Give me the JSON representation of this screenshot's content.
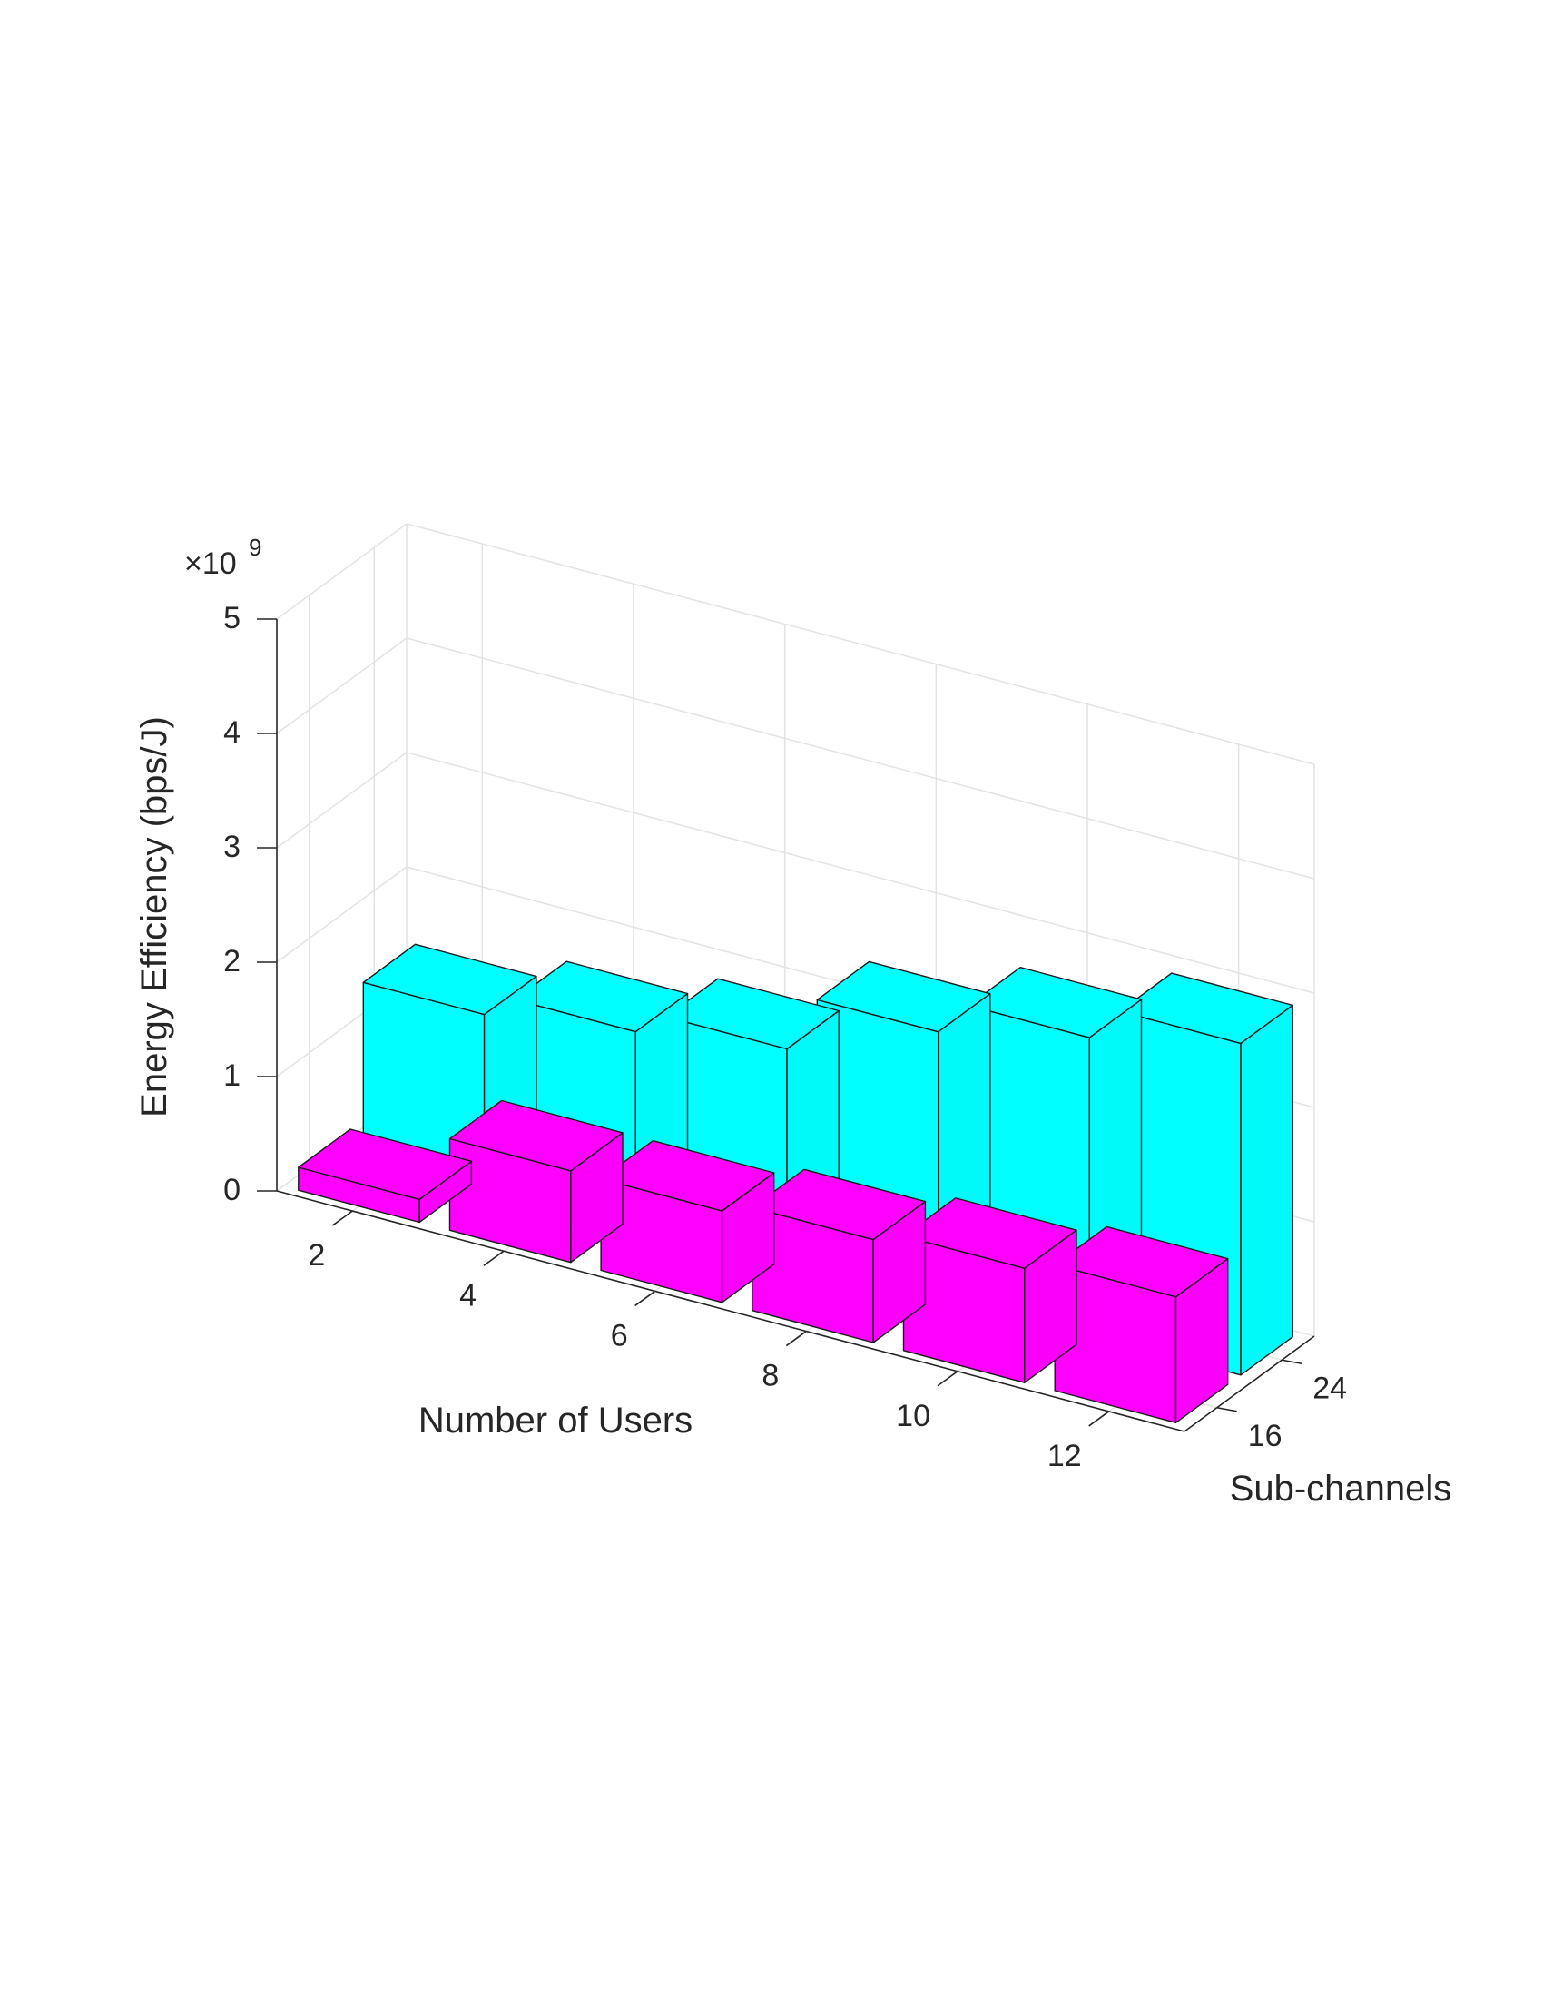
{
  "chart_data": {
    "type": "bar3d",
    "xlabel": "Number of Users",
    "ylabel": "Sub-channels",
    "zlabel": "Energy Efficiency (bps/J)",
    "exponent_label": "×10",
    "exponent_power": "9",
    "categories": [
      "2",
      "4",
      "6",
      "8",
      "10",
      "12"
    ],
    "depth_categories": [
      "16",
      "24"
    ],
    "zlim": [
      0,
      5
    ],
    "zticks": [
      "0",
      "1",
      "2",
      "3",
      "4",
      "5"
    ],
    "grid": true,
    "series": [
      {
        "name": "16",
        "color": "#FF00FF",
        "values": [
          0.2,
          0.8,
          0.8,
          0.9,
          1.0,
          1.1
        ]
      },
      {
        "name": "24",
        "color": "#00FFFF",
        "values": [
          1.4,
          1.6,
          1.8,
          2.3,
          2.6,
          2.9
        ]
      }
    ]
  }
}
